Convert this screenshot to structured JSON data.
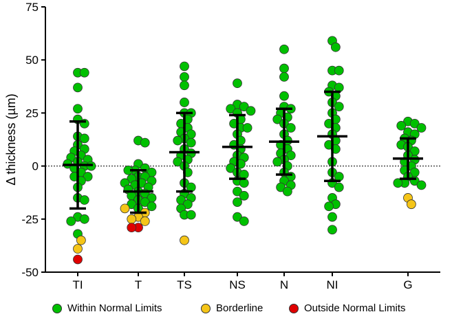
{
  "chart_data": {
    "type": "scatter",
    "title": "",
    "xlabel": "",
    "ylabel": "Δ thickness (µm)",
    "ylim": [
      -50,
      75
    ],
    "yticks": [
      -50,
      -25,
      0,
      25,
      50,
      75
    ],
    "reference_line": 0,
    "categories": [
      "TI",
      "T",
      "TS",
      "NS",
      "N",
      "NI",
      "G"
    ],
    "groups": [
      {
        "name": "TI",
        "mean": 0.5,
        "upper": 21,
        "lower": -20,
        "within": [
          44,
          44,
          37,
          27,
          22,
          20,
          14,
          13,
          10,
          8,
          7,
          5,
          4,
          3,
          2,
          1,
          0,
          0,
          -1,
          -3,
          -5,
          -5,
          -7,
          -10,
          -15,
          -16,
          -24,
          -25,
          -26,
          -32
        ],
        "borderline": [
          -35,
          -39
        ],
        "outside": [
          -44
        ]
      },
      {
        "name": "T",
        "mean": -12,
        "upper": -2,
        "lower": -22,
        "within": [
          12,
          11,
          1,
          -1,
          -2,
          -2,
          -3,
          -5,
          -5,
          -6,
          -7,
          -8,
          -8,
          -9,
          -10,
          -11,
          -12,
          -13,
          -14,
          -15,
          -16,
          -17,
          -18,
          -19,
          -20
        ],
        "borderline": [
          -20,
          -22,
          -24,
          -25,
          -26
        ],
        "outside": [
          -29,
          -29
        ]
      },
      {
        "name": "TS",
        "mean": 6.5,
        "upper": 25,
        "lower": -12,
        "within": [
          47,
          42,
          38,
          30,
          25,
          25,
          22,
          20,
          18,
          16,
          15,
          13,
          12,
          11,
          8,
          6,
          5,
          3,
          2,
          0,
          -3,
          -8,
          -10,
          -13,
          -15,
          -16,
          -18,
          -20,
          -23,
          -23
        ],
        "borderline": [
          -35
        ],
        "outside": []
      },
      {
        "name": "NS",
        "mean": 9,
        "upper": 24,
        "lower": -6,
        "within": [
          39,
          29,
          28,
          27,
          26,
          25,
          22,
          20,
          18,
          18,
          15,
          12,
          10,
          8,
          5,
          4,
          2,
          1,
          -1,
          -3,
          -4,
          -7,
          -8,
          -12,
          -14,
          -17,
          -24,
          -26
        ],
        "borderline": [],
        "outside": []
      },
      {
        "name": "N",
        "mean": 11.5,
        "upper": 27,
        "lower": -4,
        "within": [
          55,
          46,
          42,
          33,
          28,
          27,
          25,
          23,
          22,
          20,
          18,
          15,
          12,
          10,
          8,
          6,
          5,
          3,
          2,
          0,
          -3,
          -5,
          -7,
          -9,
          -10,
          -12
        ],
        "borderline": [],
        "outside": []
      },
      {
        "name": "NI",
        "mean": 14,
        "upper": 35,
        "lower": -7,
        "within": [
          59,
          56,
          45,
          45,
          38,
          37,
          35,
          33,
          30,
          28,
          25,
          22,
          20,
          18,
          15,
          12,
          10,
          8,
          2,
          -3,
          -5,
          -8,
          -10,
          -15,
          -18,
          -19,
          -24,
          -30
        ],
        "borderline": [],
        "outside": []
      },
      {
        "name": "G",
        "mean": 3.5,
        "upper": 13,
        "lower": -6,
        "within": [
          21,
          20,
          19,
          18,
          16,
          15,
          13,
          12,
          10,
          9,
          7,
          5,
          3,
          2,
          0,
          -2,
          -3,
          -5,
          -7,
          -8,
          -8,
          -9
        ],
        "borderline": [
          -15,
          -18
        ],
        "outside": []
      }
    ],
    "legend": {
      "placement": "bottom",
      "entries": [
        {
          "label": "Within Normal Limits",
          "color": "#00c000"
        },
        {
          "label": "Borderline",
          "color": "#f5c518"
        },
        {
          "label": "Outside Normal Limits",
          "color": "#e00000"
        }
      ]
    }
  }
}
